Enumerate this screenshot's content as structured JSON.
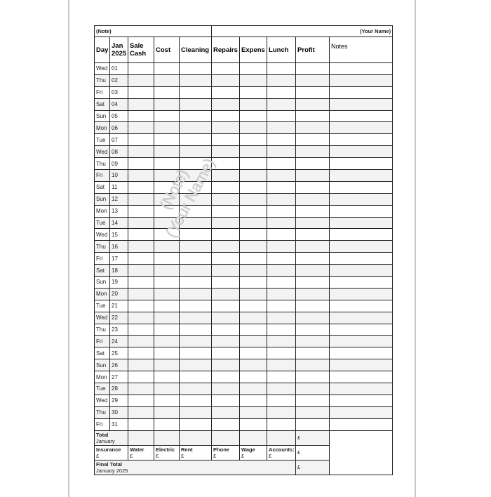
{
  "header": {
    "note": "(Note)",
    "name": "(Your Name)"
  },
  "columns": {
    "day": "Day",
    "month": "Jan",
    "year": "2025",
    "sale1": "Sale",
    "sale2": "Cash",
    "cost": "Cost",
    "cleaning": "Cleaning",
    "repairs": "Repairs",
    "expens": "Expens",
    "lunch": "Lunch",
    "profit": "Profit",
    "notes": "Notes"
  },
  "rows": [
    [
      "Wed",
      "01"
    ],
    [
      "Thu",
      "02"
    ],
    [
      "Fri",
      "03"
    ],
    [
      "Sat",
      "04"
    ],
    [
      "Sun",
      "05"
    ],
    [
      "Mon",
      "06"
    ],
    [
      "Tue",
      "07"
    ],
    [
      "Wed",
      "08"
    ],
    [
      "Thu",
      "09"
    ],
    [
      "Fri",
      "10"
    ],
    [
      "Sat",
      "11"
    ],
    [
      "Sun",
      "12"
    ],
    [
      "Mon",
      "13"
    ],
    [
      "Tue",
      "14"
    ],
    [
      "Wed",
      "15"
    ],
    [
      "Thu",
      "16"
    ],
    [
      "Fri",
      "17"
    ],
    [
      "Sat",
      "18"
    ],
    [
      "Sun",
      "19"
    ],
    [
      "Mon",
      "20"
    ],
    [
      "Tue",
      "21"
    ],
    [
      "Wed",
      "22"
    ],
    [
      "Thu",
      "23"
    ],
    [
      "Fri",
      "24"
    ],
    [
      "Sat",
      "25"
    ],
    [
      "Sun",
      "26"
    ],
    [
      "Mon",
      "27"
    ],
    [
      "Tue",
      "28"
    ],
    [
      "Wed",
      "29"
    ],
    [
      "Thu",
      "30"
    ],
    [
      "Fri",
      "31"
    ]
  ],
  "total": {
    "label": "Total",
    "sub": "January",
    "currency": "£"
  },
  "bills": [
    {
      "label": "Insurance",
      "currency": "£"
    },
    {
      "label": "Water",
      "currency": "£"
    },
    {
      "label": "Electric",
      "currency": "£"
    },
    {
      "label": "Rent",
      "currency": "£"
    },
    {
      "label": "Phone",
      "currency": "£"
    },
    {
      "label": "Wage",
      "currency": "£"
    },
    {
      "label": "Accounts:",
      "currency": "£"
    }
  ],
  "bills_total_currency": "£",
  "final": {
    "label": "Final Total",
    "sub": "January 2025",
    "currency": "£"
  },
  "watermark": {
    "line1": "(Note)",
    "line2": "(Your Name)"
  }
}
